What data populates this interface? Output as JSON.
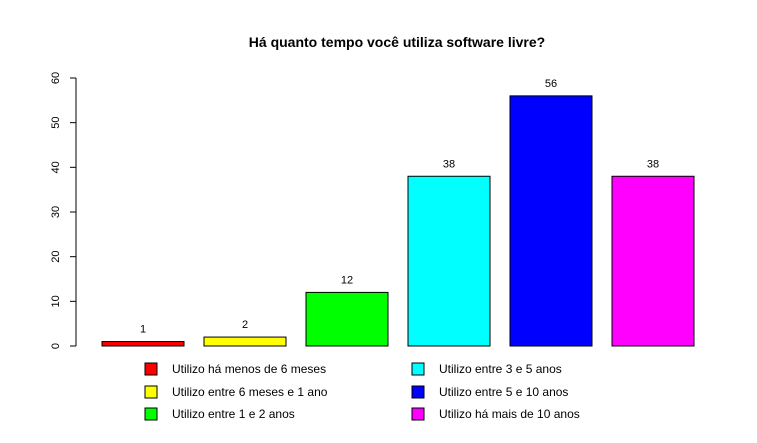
{
  "chart_data": {
    "type": "bar",
    "title": "Há quanto tempo você utiliza software livre?",
    "xlabel": "",
    "ylabel": "",
    "ylim": [
      0,
      60
    ],
    "yticks": [
      0,
      10,
      20,
      30,
      40,
      50,
      60
    ],
    "grid": false,
    "legend_position": "bottom",
    "categories": [
      "Utilizo há menos de 6 meses",
      "Utilizo entre 6 meses e 1 ano",
      "Utilizo entre 1 e 2 anos",
      "Utilizo entre 3 e 5 anos",
      "Utilizo entre 5 e 10 anos",
      "Utilizo há mais de 10 anos"
    ],
    "values": [
      1,
      2,
      12,
      38,
      56,
      38
    ],
    "colors": [
      "#ff0000",
      "#ffff00",
      "#00ff00",
      "#00ffff",
      "#0000ff",
      "#ff00ff"
    ]
  }
}
